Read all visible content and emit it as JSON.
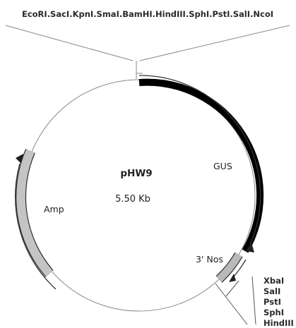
{
  "plasmid": {
    "name": "pHW9",
    "size": "5.50 Kb"
  },
  "mcs_top": {
    "label": "EcoRI.SacI.KpnI.SmaI.BamHI.HindIII.SphI.PstI.SalI.NcoI"
  },
  "features": {
    "gus": {
      "label": "GUS",
      "color": "#000000"
    },
    "nos": {
      "label": "3' Nos",
      "color": "#b9b9b9"
    },
    "amp": {
      "label": "Amp",
      "color": "#c4c4c4"
    }
  },
  "sites_bottom": [
    "XbaI",
    "SalI",
    "PstI",
    "SphI",
    "HindIII"
  ],
  "colors": {
    "backbone": "#8a8a8a",
    "outline": "#333333"
  }
}
